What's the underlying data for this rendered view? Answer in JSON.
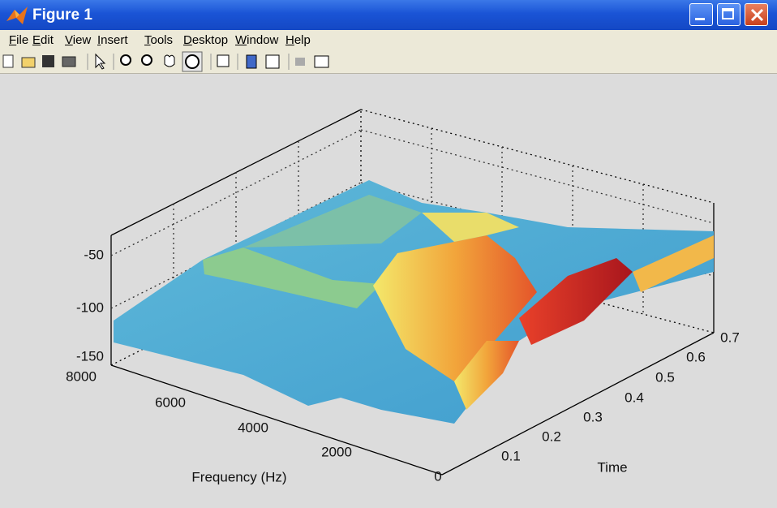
{
  "window": {
    "title": "Figure 1"
  },
  "menu": {
    "items": [
      "File",
      "Edit",
      "View",
      "Insert",
      "Tools",
      "Desktop",
      "Window",
      "Help"
    ]
  },
  "plot": {
    "zticks": [
      -50,
      -100,
      -150
    ],
    "xticks": [
      8000,
      6000,
      4000,
      2000,
      0
    ],
    "yticks": [
      0.1,
      0.2,
      0.3,
      0.4,
      0.5,
      0.6,
      0.7
    ],
    "xlabel": "Frequency (Hz)",
    "ylabel": "Time"
  }
}
